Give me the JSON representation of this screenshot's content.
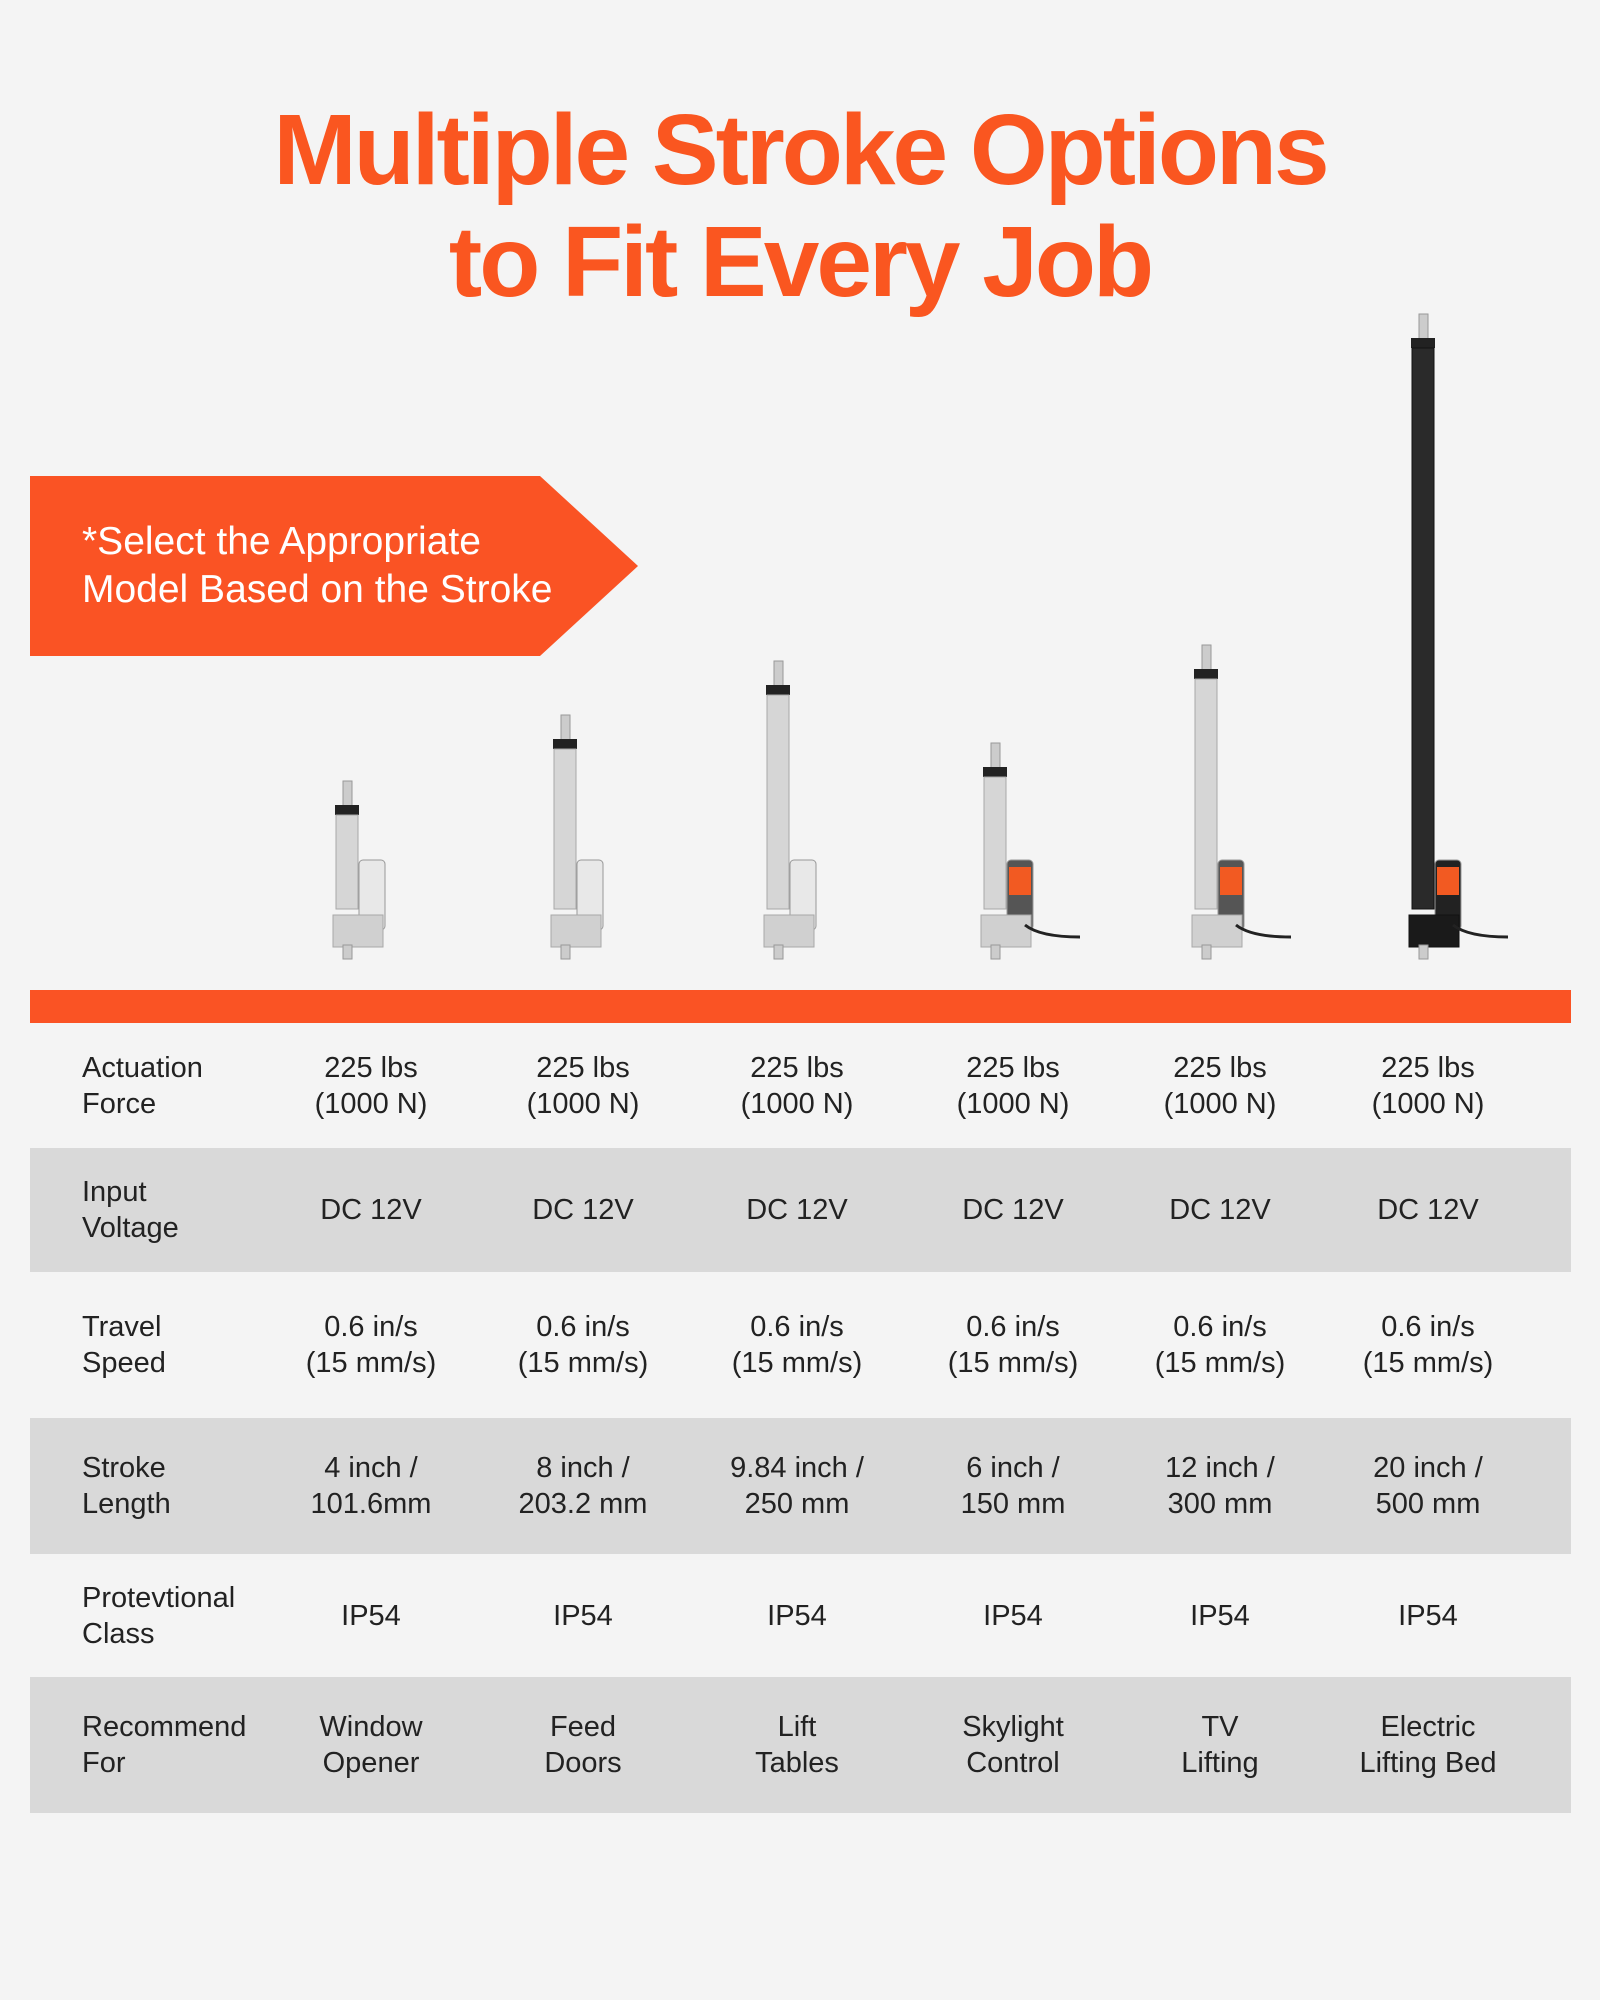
{
  "title": {
    "line1": "Multiple Stroke Options",
    "line2": "to Fit Every Job"
  },
  "banner": {
    "text": "*Select the Appropriate\nModel Based on the Stroke"
  },
  "colors": {
    "accent": "#fa5620",
    "row_alt": "#d9d9d9",
    "background": "#f4f4f4"
  },
  "products": [
    {
      "body": "silver",
      "stroke": "4 inch"
    },
    {
      "body": "silver",
      "stroke": "8 inch"
    },
    {
      "body": "silver",
      "stroke": "9.84 inch"
    },
    {
      "body": "silver-orange-label",
      "stroke": "6 inch"
    },
    {
      "body": "silver-orange-label",
      "stroke": "12 inch"
    },
    {
      "body": "black",
      "stroke": "20 inch"
    }
  ],
  "table": {
    "rows": [
      {
        "label": "Actuation\nForce",
        "values": [
          "225 lbs\n(1000 N)",
          "225 lbs\n(1000 N)",
          "225 lbs\n(1000 N)",
          "225 lbs\n(1000 N)",
          "225 lbs\n(1000 N)",
          "225 lbs\n(1000 N)"
        ]
      },
      {
        "label": "Input\nVoltage",
        "values": [
          "DC 12V",
          "DC 12V",
          "DC 12V",
          "DC 12V",
          "DC 12V",
          "DC 12V"
        ]
      },
      {
        "label": "Travel\nSpeed",
        "values": [
          "0.6 in/s\n(15 mm/s)",
          "0.6 in/s\n(15 mm/s)",
          "0.6 in/s\n(15 mm/s)",
          "0.6 in/s\n(15 mm/s)",
          "0.6 in/s\n(15 mm/s)",
          "0.6 in/s\n(15 mm/s)"
        ]
      },
      {
        "label": "Stroke\nLength",
        "values": [
          "4 inch /\n101.6mm",
          "8 inch /\n203.2 mm",
          "9.84 inch /\n250 mm",
          "6 inch /\n150 mm",
          "12 inch /\n300 mm",
          "20 inch /\n500 mm"
        ]
      },
      {
        "label": "Protevtional\nClass",
        "values": [
          "IP54",
          "IP54",
          "IP54",
          "IP54",
          "IP54",
          "IP54"
        ]
      },
      {
        "label": "Recommend\nFor",
        "values": [
          "Window\nOpener",
          "Feed\nDoors",
          "Lift\nTables",
          "Skylight\nControl",
          "TV\nLifting",
          "Electric\nLifting Bed"
        ]
      }
    ]
  }
}
